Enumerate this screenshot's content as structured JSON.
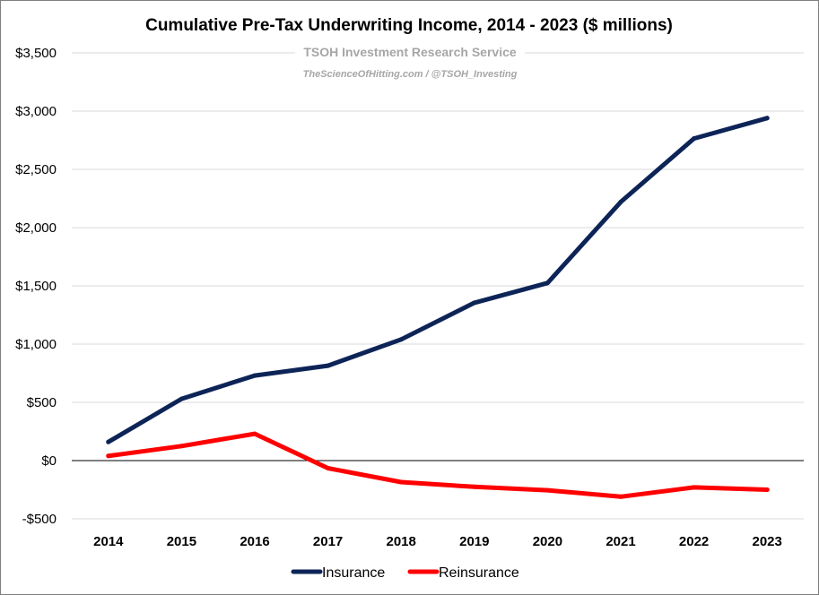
{
  "chart_data": {
    "type": "line",
    "title": "Cumulative Pre-Tax Underwriting Income, 2014 - 2023 ($ millions)",
    "watermark_line1": "TSOH Investment Research Service",
    "watermark_line2": "TheScienceOfHitting.com / @TSOH_Investing",
    "x": [
      "2014",
      "2015",
      "2016",
      "2017",
      "2018",
      "2019",
      "2020",
      "2021",
      "2022",
      "2023"
    ],
    "ylim": [
      -500,
      3500
    ],
    "yticks": [
      3500,
      3000,
      2500,
      2000,
      1500,
      1000,
      500,
      0,
      -500
    ],
    "ytick_labels": [
      "$3,500",
      "$3,000",
      "$2,500",
      "$2,000",
      "$1,500",
      "$1,000",
      "$500",
      "$0",
      "-$500"
    ],
    "grid": true,
    "legend_position": "bottom",
    "series": [
      {
        "name": "Insurance",
        "color": "#0d2457",
        "values": [
          160,
          530,
          730,
          815,
          1040,
          1355,
          1525,
          2220,
          2765,
          2940
        ]
      },
      {
        "name": "Reinsurance",
        "color": "#ff0000",
        "values": [
          40,
          125,
          230,
          -65,
          -185,
          -225,
          -255,
          -310,
          -230,
          -250
        ]
      }
    ]
  }
}
